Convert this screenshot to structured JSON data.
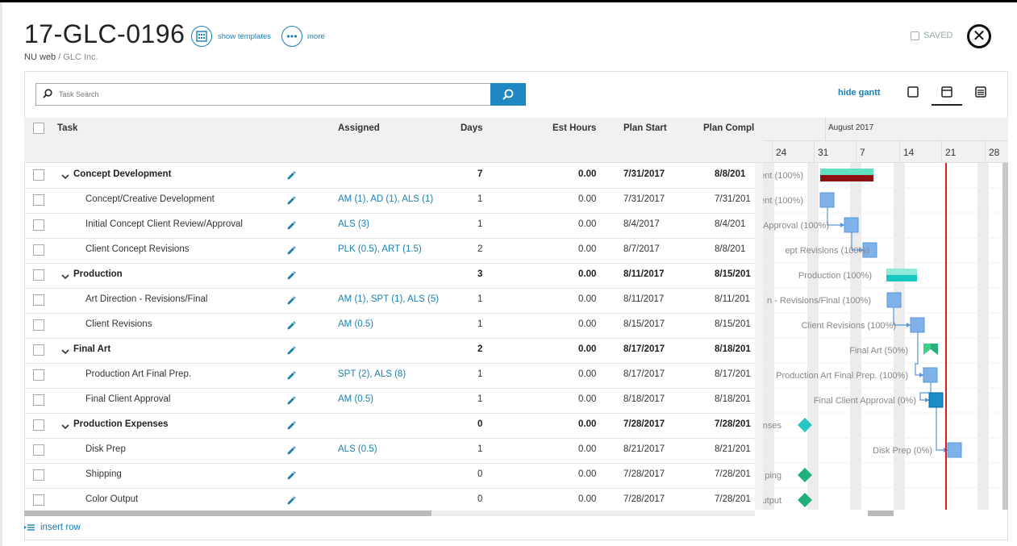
{
  "header": {
    "title": "17-GLC-0196",
    "crumb_org": "NU web",
    "crumb_sep": " / ",
    "crumb_client": "GLC Inc.",
    "show_templates_label": "show templates",
    "more_label": "more",
    "saved_label": "SAVED",
    "close_icon": "close-icon"
  },
  "toolbar": {
    "search_placeholder": "Task Search",
    "hide_gantt_label": "hide gantt"
  },
  "columns": {
    "task": "Task",
    "assigned": "Assigned",
    "days": "Days",
    "est_hours": "Est Hours",
    "plan_start": "Plan Start",
    "plan_complete": "Plan Compl"
  },
  "gantt": {
    "month_label": "August 2017",
    "day_labels": [
      "24",
      "31",
      "7",
      "14",
      "21",
      "28"
    ],
    "accent": "#d9201f",
    "task_labels": [
      "ent (100%)",
      "ent (100%)",
      "Approval (100%)",
      "ept Revisions (100%)",
      "Production (100%)",
      "n - Revisions/Final (100%)",
      "Client Revisions (100%)",
      "Final Art (50%)",
      "Production Art Final Prep. (100%)",
      "Final Client Approval (0%)",
      "nses",
      "Disk Prep (0%)",
      "ping",
      "utput"
    ]
  },
  "rows": [
    {
      "task": "Concept Development",
      "group": true,
      "assigned": "",
      "days": "7",
      "hours": "0.00",
      "start": "7/31/2017",
      "complete": "8/8/201"
    },
    {
      "task": "Concept/Creative Development",
      "group": false,
      "assigned": "AM (1), AD (1), ALS (1)",
      "days": "1",
      "hours": "0.00",
      "start": "7/31/2017",
      "complete": "7/31/201"
    },
    {
      "task": "Initial Concept Client Review/Approval",
      "group": false,
      "assigned": "ALS (3)",
      "days": "1",
      "hours": "0.00",
      "start": "8/4/2017",
      "complete": "8/4/201"
    },
    {
      "task": "Client Concept Revisions",
      "group": false,
      "assigned": "PLK (0.5), ART (1.5)",
      "days": "2",
      "hours": "0.00",
      "start": "8/7/2017",
      "complete": "8/8/201"
    },
    {
      "task": "Production",
      "group": true,
      "assigned": "",
      "days": "3",
      "hours": "0.00",
      "start": "8/11/2017",
      "complete": "8/15/201"
    },
    {
      "task": "Art Direction - Revisions/Final",
      "group": false,
      "assigned": "AM (1), SPT (1), ALS (5)",
      "days": "1",
      "hours": "0.00",
      "start": "8/11/2017",
      "complete": "8/11/201"
    },
    {
      "task": "Client Revisions",
      "group": false,
      "assigned": "AM (0.5)",
      "days": "1",
      "hours": "0.00",
      "start": "8/15/2017",
      "complete": "8/15/201"
    },
    {
      "task": "Final Art",
      "group": true,
      "assigned": "",
      "days": "2",
      "hours": "0.00",
      "start": "8/17/2017",
      "complete": "8/18/201"
    },
    {
      "task": "Production Art Final Prep.",
      "group": false,
      "assigned": "SPT (2), ALS (8)",
      "days": "1",
      "hours": "0.00",
      "start": "8/17/2017",
      "complete": "8/17/201"
    },
    {
      "task": "Final Client Approval",
      "group": false,
      "assigned": "AM (0.5)",
      "days": "1",
      "hours": "0.00",
      "start": "8/18/2017",
      "complete": "8/18/201"
    },
    {
      "task": "Production Expenses",
      "group": true,
      "assigned": "",
      "days": "0",
      "hours": "0.00",
      "start": "7/28/2017",
      "complete": "7/28/201"
    },
    {
      "task": "Disk Prep",
      "group": false,
      "assigned": "ALS (0.5)",
      "days": "1",
      "hours": "0.00",
      "start": "8/21/2017",
      "complete": "8/21/201"
    },
    {
      "task": "Shipping",
      "group": false,
      "assigned": "",
      "days": "0",
      "hours": "0.00",
      "start": "7/28/2017",
      "complete": "7/28/201"
    },
    {
      "task": "Color Output",
      "group": false,
      "assigned": "",
      "days": "0",
      "hours": "0.00",
      "start": "7/28/2017",
      "complete": "7/28/201"
    }
  ],
  "footer": {
    "insert_row_label": "insert row"
  }
}
